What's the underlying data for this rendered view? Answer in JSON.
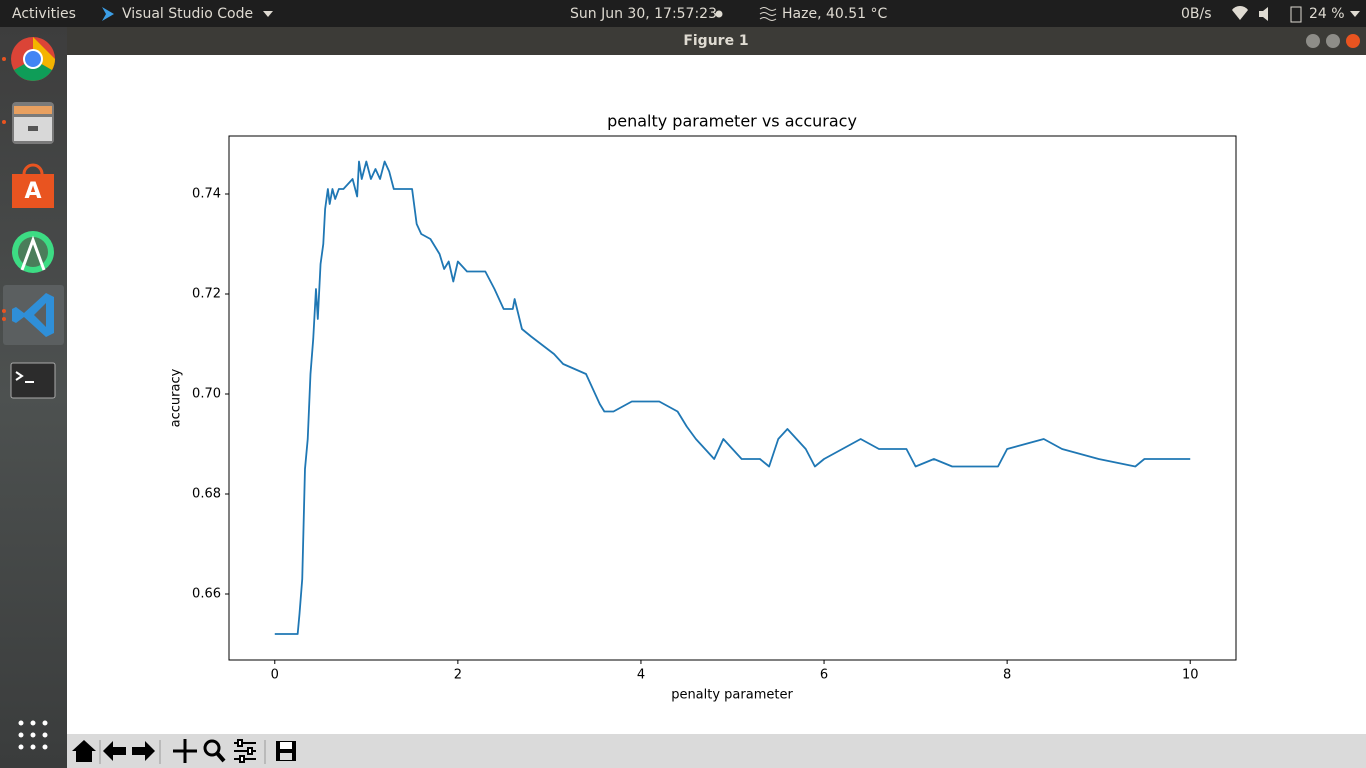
{
  "topbar": {
    "activities": "Activities",
    "app": "Visual Studio Code",
    "clock": "Sun Jun 30, 17:57:23",
    "weather": "Haze, 40.51 °C",
    "net": "0B/s",
    "battery": "24 %"
  },
  "window": {
    "title": "Figure 1"
  },
  "chart_data": {
    "type": "line",
    "title": "penalty parameter vs accuracy",
    "x_label": "penalty parameter",
    "y_label": "accuracy",
    "color": "#1f77b4",
    "x": [
      0,
      0.25,
      0.27,
      0.3,
      0.33,
      0.36,
      0.39,
      0.42,
      0.45,
      0.47,
      0.5,
      0.53,
      0.55,
      0.58,
      0.6,
      0.63,
      0.66,
      0.7,
      0.75,
      0.8,
      0.85,
      0.9,
      0.92,
      0.95,
      1.0,
      1.05,
      1.1,
      1.15,
      1.2,
      1.25,
      1.3,
      1.5,
      1.55,
      1.6,
      1.7,
      1.8,
      1.85,
      1.9,
      1.95,
      2.0,
      2.1,
      2.3,
      2.4,
      2.5,
      2.6,
      2.62,
      2.7,
      2.8,
      3.05,
      3.15,
      3.4,
      3.5,
      3.55,
      3.6,
      3.7,
      3.9,
      4.0,
      4.2,
      4.4,
      4.5,
      4.6,
      4.7,
      4.8,
      4.9,
      5.0,
      5.1,
      5.3,
      5.4,
      5.5,
      5.6,
      5.8,
      5.9,
      6.0,
      6.4,
      6.6,
      6.9,
      7.0,
      7.2,
      7.4,
      7.6,
      7.9,
      8.0,
      8.4,
      8.6,
      9.0,
      9.4,
      9.5,
      10
    ],
    "values": [
      0.652,
      0.652,
      0.656,
      0.663,
      0.685,
      0.691,
      0.704,
      0.711,
      0.721,
      0.715,
      0.726,
      0.73,
      0.737,
      0.741,
      0.738,
      0.741,
      0.739,
      0.741,
      0.741,
      0.742,
      0.743,
      0.7395,
      0.7465,
      0.743,
      0.7465,
      0.743,
      0.745,
      0.743,
      0.7465,
      0.7445,
      0.741,
      0.741,
      0.734,
      0.732,
      0.731,
      0.728,
      0.725,
      0.7265,
      0.7225,
      0.7265,
      0.7245,
      0.7245,
      0.721,
      0.717,
      0.717,
      0.719,
      0.713,
      0.7115,
      0.708,
      0.706,
      0.704,
      0.7,
      0.698,
      0.6965,
      0.6965,
      0.6985,
      0.6985,
      0.6985,
      0.6965,
      0.6935,
      0.691,
      0.689,
      0.687,
      0.691,
      0.689,
      0.687,
      0.687,
      0.6855,
      0.691,
      0.693,
      0.689,
      0.6855,
      0.687,
      0.691,
      0.689,
      0.689,
      0.6855,
      0.687,
      0.6855,
      0.6855,
      0.6855,
      0.689,
      0.691,
      0.689,
      0.687,
      0.6855,
      0.687,
      0.687
    ],
    "xlim": [
      -0.5,
      10.5
    ],
    "ylim": [
      0.6468,
      0.7516
    ],
    "xticks": [
      0,
      2,
      4,
      6,
      8,
      10
    ],
    "yticks": [
      0.66,
      0.68,
      {
        "value": 0.7,
        "label": "0.70"
      },
      0.72,
      0.74
    ]
  }
}
